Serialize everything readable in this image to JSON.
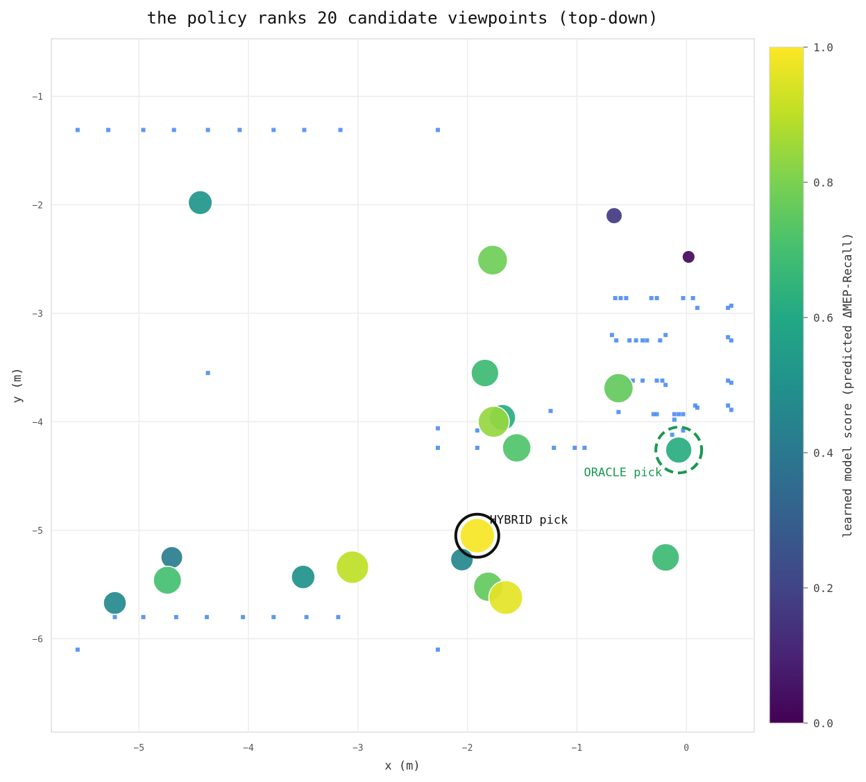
{
  "chart_data": {
    "type": "scatter",
    "title": "the policy ranks 20 candidate viewpoints (top-down)",
    "xlabel": "x (m)",
    "ylabel": "y (m)",
    "xlim": [
      -5.8,
      0.62
    ],
    "ylim": [
      -6.86,
      -0.47
    ],
    "x_ticks": [
      -5,
      -4,
      -3,
      -2,
      -1,
      0
    ],
    "x_tick_labels": [
      "−5",
      "−4",
      "−3",
      "−2",
      "−1",
      "0"
    ],
    "y_ticks": [
      -1,
      -2,
      -3,
      -4,
      -5,
      -6
    ],
    "y_tick_labels": [
      "−1",
      "−2",
      "−3",
      "−4",
      "−5",
      "−6"
    ],
    "grid": true,
    "colormap": "viridis",
    "colorbar": {
      "label": "learned model score (predicted ΔMEP-Recall)",
      "range": [
        0.0,
        1.0
      ],
      "ticks": [
        0.0,
        0.2,
        0.4,
        0.6,
        0.8,
        1.0
      ],
      "tick_labels": [
        "0.0",
        "0.2",
        "0.4",
        "0.6",
        "0.8",
        "1.0"
      ]
    },
    "candidates": [
      {
        "x": -4.44,
        "y": -1.98,
        "score": 0.52
      },
      {
        "x": -0.66,
        "y": -2.1,
        "score": 0.17
      },
      {
        "x": 0.02,
        "y": -2.48,
        "score": 0.02
      },
      {
        "x": -1.77,
        "y": -2.51,
        "score": 0.78
      },
      {
        "x": -1.84,
        "y": -3.55,
        "score": 0.68
      },
      {
        "x": -0.62,
        "y": -3.69,
        "score": 0.76
      },
      {
        "x": -1.68,
        "y": -3.96,
        "score": 0.62
      },
      {
        "x": -1.76,
        "y": -4.0,
        "score": 0.84
      },
      {
        "x": -1.55,
        "y": -4.24,
        "score": 0.72
      },
      {
        "x": -0.07,
        "y": -4.26,
        "score": 0.62
      },
      {
        "x": -1.91,
        "y": -5.05,
        "score": 0.99
      },
      {
        "x": -2.05,
        "y": -5.27,
        "score": 0.46
      },
      {
        "x": -4.7,
        "y": -5.25,
        "score": 0.42
      },
      {
        "x": -4.74,
        "y": -5.46,
        "score": 0.7
      },
      {
        "x": -5.22,
        "y": -5.67,
        "score": 0.47
      },
      {
        "x": -3.5,
        "y": -5.43,
        "score": 0.5
      },
      {
        "x": -3.05,
        "y": -5.34,
        "score": 0.9
      },
      {
        "x": -1.81,
        "y": -5.52,
        "score": 0.76
      },
      {
        "x": -1.65,
        "y": -5.62,
        "score": 0.96
      },
      {
        "x": -0.19,
        "y": -5.25,
        "score": 0.68
      }
    ],
    "scene_points": [
      {
        "x": -5.56,
        "y": -1.31
      },
      {
        "x": -5.28,
        "y": -1.31
      },
      {
        "x": -4.96,
        "y": -1.31
      },
      {
        "x": -4.68,
        "y": -1.31
      },
      {
        "x": -4.37,
        "y": -1.31
      },
      {
        "x": -4.08,
        "y": -1.31
      },
      {
        "x": -3.77,
        "y": -1.31
      },
      {
        "x": -3.49,
        "y": -1.31
      },
      {
        "x": -3.16,
        "y": -1.31
      },
      {
        "x": -2.27,
        "y": -1.31
      },
      {
        "x": -4.37,
        "y": -3.55
      },
      {
        "x": -2.27,
        "y": -4.06
      },
      {
        "x": -2.27,
        "y": -4.24
      },
      {
        "x": -1.91,
        "y": -4.08
      },
      {
        "x": -1.91,
        "y": -4.24
      },
      {
        "x": -1.24,
        "y": -3.9
      },
      {
        "x": -1.21,
        "y": -4.24
      },
      {
        "x": -1.02,
        "y": -4.24
      },
      {
        "x": -0.93,
        "y": -4.24
      },
      {
        "x": -5.22,
        "y": -5.8
      },
      {
        "x": -4.96,
        "y": -5.8
      },
      {
        "x": -4.66,
        "y": -5.8
      },
      {
        "x": -4.38,
        "y": -5.8
      },
      {
        "x": -4.05,
        "y": -5.8
      },
      {
        "x": -3.77,
        "y": -5.8
      },
      {
        "x": -3.47,
        "y": -5.8
      },
      {
        "x": -3.18,
        "y": -5.8
      },
      {
        "x": -5.56,
        "y": -6.1
      },
      {
        "x": -2.27,
        "y": -6.1
      },
      {
        "x": -0.65,
        "y": -2.86
      },
      {
        "x": -0.6,
        "y": -2.86
      },
      {
        "x": -0.55,
        "y": -2.86
      },
      {
        "x": -0.32,
        "y": -2.86
      },
      {
        "x": -0.27,
        "y": -2.86
      },
      {
        "x": -0.03,
        "y": -2.86
      },
      {
        "x": 0.06,
        "y": -2.86
      },
      {
        "x": 0.1,
        "y": -2.95
      },
      {
        "x": 0.38,
        "y": -2.95
      },
      {
        "x": 0.41,
        "y": -2.93
      },
      {
        "x": -0.68,
        "y": -3.2
      },
      {
        "x": -0.64,
        "y": -3.25
      },
      {
        "x": -0.52,
        "y": -3.25
      },
      {
        "x": -0.46,
        "y": -3.25
      },
      {
        "x": -0.4,
        "y": -3.25
      },
      {
        "x": -0.36,
        "y": -3.25
      },
      {
        "x": -0.24,
        "y": -3.25
      },
      {
        "x": -0.19,
        "y": -3.2
      },
      {
        "x": 0.38,
        "y": -3.22
      },
      {
        "x": 0.41,
        "y": -3.25
      },
      {
        "x": -0.49,
        "y": -3.62
      },
      {
        "x": -0.4,
        "y": -3.62
      },
      {
        "x": -0.27,
        "y": -3.62
      },
      {
        "x": -0.22,
        "y": -3.62
      },
      {
        "x": -0.19,
        "y": -3.66
      },
      {
        "x": 0.38,
        "y": -3.62
      },
      {
        "x": 0.41,
        "y": -3.64
      },
      {
        "x": -0.62,
        "y": -3.91
      },
      {
        "x": -0.3,
        "y": -3.93
      },
      {
        "x": -0.27,
        "y": -3.93
      },
      {
        "x": -0.11,
        "y": -3.93
      },
      {
        "x": -0.11,
        "y": -3.98
      },
      {
        "x": -0.07,
        "y": -3.93
      },
      {
        "x": -0.03,
        "y": -3.93
      },
      {
        "x": 0.08,
        "y": -3.85
      },
      {
        "x": 0.1,
        "y": -3.87
      },
      {
        "x": 0.38,
        "y": -3.85
      },
      {
        "x": 0.41,
        "y": -3.89
      },
      {
        "x": -0.13,
        "y": -4.12
      },
      {
        "x": -0.03,
        "y": -4.08
      }
    ],
    "annotations": [
      {
        "text": "HYBRID pick",
        "x": -1.91,
        "y": -5.05
      },
      {
        "text": "ORACLE pick",
        "x": -0.07,
        "y": -4.26
      }
    ],
    "highlight_colors": {
      "hybrid_ring": "#111111",
      "oracle_ring": "#1a9850",
      "oracle_text": "#1a9850",
      "scene_points": "#4285f4"
    }
  }
}
